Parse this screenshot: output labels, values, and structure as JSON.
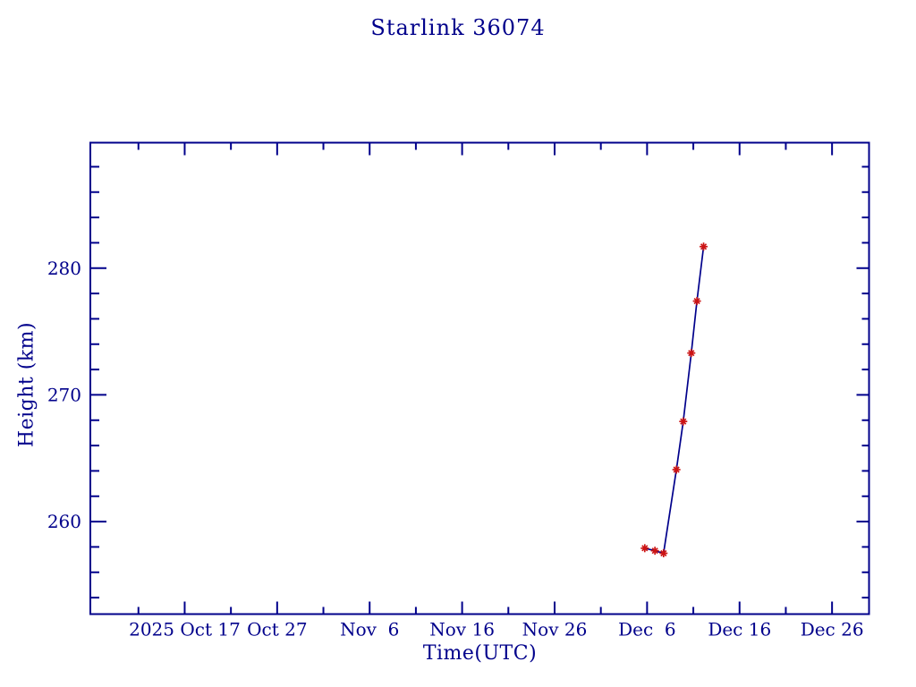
{
  "page": {
    "background_color": "#ffffff"
  },
  "figure": {
    "title": "Starlink 36074",
    "ink_color": "#00008b",
    "marker_color": "#cc1414"
  },
  "chart_data": {
    "type": "line",
    "title": "Starlink 36074",
    "xlabel": "Time(UTC)",
    "ylabel": "Height (km)",
    "grid": false,
    "legend": "none",
    "x_axis": {
      "unit": "days since 2025 Oct 17 00:00 UTC",
      "lim": [
        -10.2,
        74.0
      ],
      "major_ticks": [
        0,
        10,
        20,
        30,
        40,
        50,
        60,
        70
      ],
      "major_tick_labels": [
        "2025 Oct 17",
        "Oct 27",
        "Nov  6",
        "Nov 16",
        "Nov 26",
        "Dec  6",
        "Dec 16",
        "Dec 26"
      ],
      "minor_ticks": [
        -5,
        5,
        15,
        25,
        35,
        45,
        55,
        65
      ]
    },
    "y_axis": {
      "unit": "km",
      "lim": [
        252.7,
        289.9
      ],
      "major_ticks": [
        260,
        270,
        280
      ],
      "major_tick_labels": [
        "260",
        "270",
        "280"
      ],
      "minor_ticks": [
        254,
        256,
        258,
        262,
        264,
        266,
        268,
        272,
        274,
        276,
        278,
        282,
        284,
        286,
        288
      ]
    },
    "series": [
      {
        "name": "satellite-height",
        "marker": "asterisk",
        "line_color": "#00008b",
        "marker_color": "#cc1414",
        "points": [
          {
            "x": 49.75,
            "approx_date": "Dec 5.8",
            "y": 257.9
          },
          {
            "x": 50.85,
            "approx_date": "Dec 6.9",
            "y": 257.7
          },
          {
            "x": 51.78,
            "approx_date": "Dec 7.8",
            "y": 257.5
          },
          {
            "x": 53.17,
            "approx_date": "Dec 9.2",
            "y": 264.1
          },
          {
            "x": 53.91,
            "approx_date": "Dec 9.9",
            "y": 267.9
          },
          {
            "x": 54.78,
            "approx_date": "Dec 10.8",
            "y": 273.3
          },
          {
            "x": 55.39,
            "approx_date": "Dec 11.4",
            "y": 277.4
          },
          {
            "x": 56.11,
            "approx_date": "Dec 12.1",
            "y": 281.7
          }
        ]
      }
    ]
  }
}
